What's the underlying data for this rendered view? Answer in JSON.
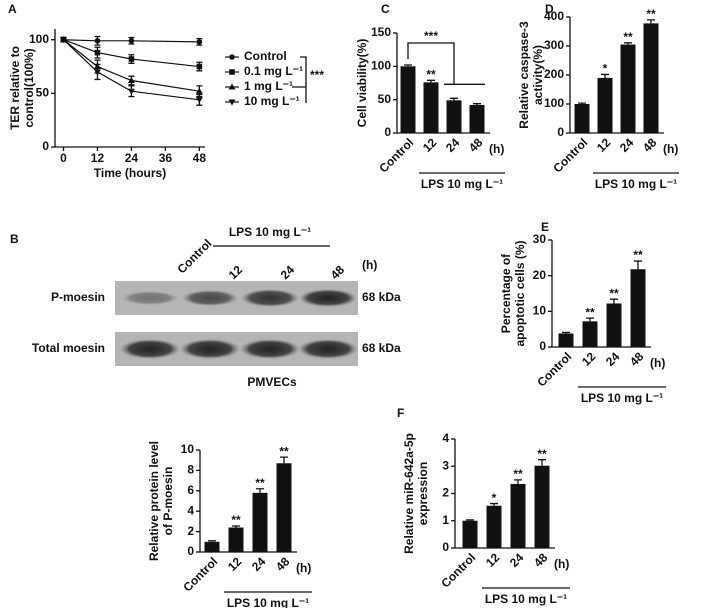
{
  "chart_data": [
    {
      "type": "line",
      "label": "A",
      "ylabel": [
        "TER relative to",
        "control(100%)"
      ],
      "xlabel": "Time (hours)",
      "x": [
        0,
        12,
        24,
        48
      ],
      "xlim": [
        -3,
        50
      ],
      "xticks": [
        0,
        12,
        24,
        36,
        48
      ],
      "ylim": [
        0,
        110
      ],
      "yticks": [
        0,
        50,
        100
      ],
      "series": [
        {
          "name": "Control",
          "color": "#111111",
          "values": [
            100,
            99,
            99,
            98
          ],
          "errors": [
            2,
            4,
            3,
            3
          ]
        },
        {
          "name": "0.1 mg L⁻¹",
          "color": "#111111",
          "values": [
            100,
            88,
            82,
            75
          ],
          "errors": [
            2,
            5,
            4,
            4
          ]
        },
        {
          "name": "1 mg L⁻¹",
          "color": "#111111",
          "values": [
            100,
            75,
            62,
            52
          ],
          "errors": [
            2,
            6,
            4,
            5
          ]
        },
        {
          "name": "10 mg L⁻¹",
          "color": "#111111",
          "values": [
            100,
            70,
            52,
            44
          ],
          "errors": [
            2,
            7,
            5,
            5
          ]
        }
      ],
      "significance": "***"
    },
    {
      "type": "bar",
      "label": "C",
      "ylabel": [
        "Cell viability(%)"
      ],
      "categories": [
        "Control",
        "12",
        "24",
        "48"
      ],
      "values": [
        100,
        76,
        49,
        42
      ],
      "errors": [
        2,
        3,
        3,
        2
      ],
      "stars": [
        null,
        "**",
        null,
        null
      ],
      "bracket_label": "***",
      "ylim": [
        0,
        150
      ],
      "yticks": [
        0,
        50,
        100,
        150
      ],
      "color": "#111111",
      "unit_label": "(h)",
      "group_label": "LPS 10 mg L⁻¹"
    },
    {
      "type": "bar",
      "label": "D",
      "ylabel": [
        "Relative caspase-3",
        "activity(%)"
      ],
      "categories": [
        "Control",
        "12",
        "24",
        "48"
      ],
      "values": [
        100,
        190,
        305,
        378
      ],
      "errors": [
        3,
        12,
        6,
        12
      ],
      "stars": [
        null,
        "*",
        "**",
        "**"
      ],
      "ylim": [
        0,
        400
      ],
      "yticks": [
        0,
        100,
        200,
        300,
        400
      ],
      "color": "#111111",
      "unit_label": "(h)",
      "group_label": "LPS 10 mg L⁻¹"
    },
    {
      "type": "bar",
      "label": "E",
      "ylabel": [
        "Percentage of",
        "apoptotic cells (%)"
      ],
      "categories": [
        "Control",
        "12",
        "24",
        "48"
      ],
      "values": [
        3.8,
        7.2,
        12.2,
        21.8
      ],
      "errors": [
        0.3,
        0.9,
        1.2,
        2.3
      ],
      "stars": [
        null,
        "**",
        "**",
        "**"
      ],
      "ylim": [
        0,
        30
      ],
      "yticks": [
        0,
        10,
        20,
        30
      ],
      "color": "#111111",
      "unit_label": "(h)",
      "group_label": "LPS 10 mg L⁻¹"
    },
    {
      "type": "bar",
      "ylabel": [
        "Relative protein level",
        "of P-moesin"
      ],
      "categories": [
        "Control",
        "12",
        "24",
        "48"
      ],
      "values": [
        1,
        2.4,
        5.8,
        8.7
      ],
      "errors": [
        0.1,
        0.15,
        0.4,
        0.6
      ],
      "stars": [
        null,
        "**",
        "**",
        "**"
      ],
      "ylim": [
        0,
        10
      ],
      "yticks": [
        0,
        2,
        4,
        6,
        8,
        10
      ],
      "color": "#111111",
      "unit_label": "(h)",
      "group_label": "LPS 10 mg L⁻¹"
    },
    {
      "type": "bar",
      "label": "F",
      "ylabel": [
        "Relative miR-642a-5p",
        "expression"
      ],
      "categories": [
        "Control",
        "12",
        "24",
        "48"
      ],
      "values": [
        1,
        1.55,
        2.35,
        3.02
      ],
      "errors": [
        0.03,
        0.08,
        0.15,
        0.22
      ],
      "stars": [
        null,
        "*",
        "**",
        "**"
      ],
      "ylim": [
        0,
        4
      ],
      "yticks": [
        0,
        1,
        2,
        3,
        4
      ],
      "color": "#111111",
      "unit_label": "(h)",
      "group_label": "LPS 10 mg L⁻¹"
    }
  ],
  "blot": {
    "label": "B",
    "lanes": [
      "Control",
      "12",
      "24",
      "48"
    ],
    "unit": "(h)",
    "treatment": "LPS 10 mg L⁻¹",
    "rows": [
      {
        "name": "P-moesin",
        "size": "68 kDa"
      },
      {
        "name": "Total moesin",
        "size": "68 kDa"
      }
    ],
    "cell_line": "PMVECs"
  }
}
